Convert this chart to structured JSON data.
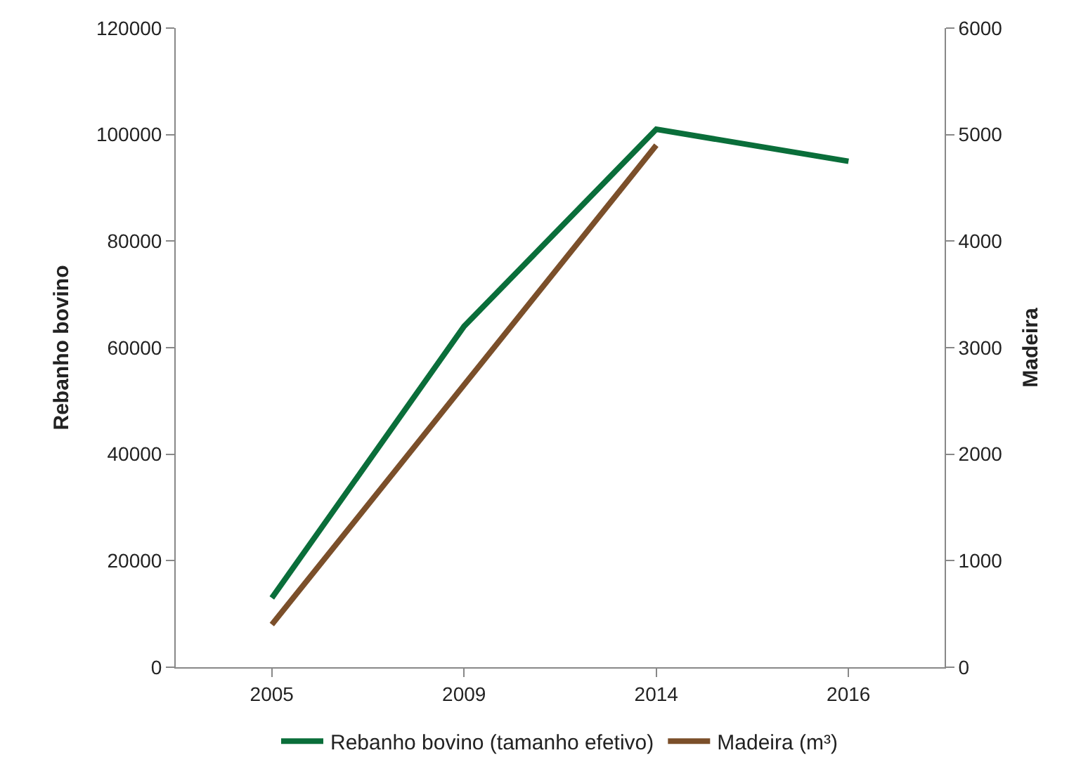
{
  "chart_data": {
    "type": "line",
    "categories": [
      "2005",
      "2009",
      "2014",
      "2016"
    ],
    "series": [
      {
        "name": "Rebanho bovino (tamanho efetivo)",
        "color": "#0a6e3a",
        "values": [
          13000,
          64000,
          101000,
          95000
        ]
      },
      {
        "name": "Madeira (m³)",
        "color": "#7b4f2a",
        "values": [
          400,
          2650,
          4900,
          null
        ],
        "axis": "y2"
      }
    ],
    "ylabel": "Rebanho bovino",
    "y2label": "Madeira",
    "ylim": [
      0,
      120000
    ],
    "yticks": [
      0,
      20000,
      40000,
      60000,
      80000,
      100000,
      120000
    ],
    "y2lim": [
      0,
      6000
    ],
    "y2ticks": [
      0,
      1000,
      2000,
      3000,
      4000,
      5000,
      6000
    ],
    "legend": "bottom",
    "marker": "none",
    "line_style": "solid"
  }
}
